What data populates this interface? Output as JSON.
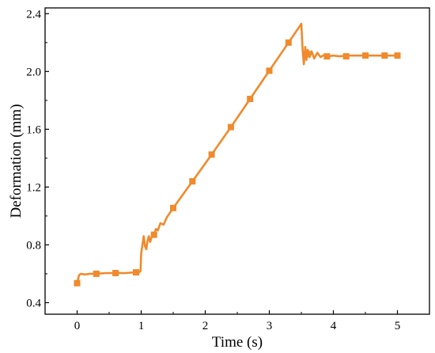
{
  "chart_data": {
    "type": "line",
    "title": "",
    "xlabel": "Time (s)",
    "ylabel": "Deformation (mm)",
    "xlim": [
      -0.5,
      5.5
    ],
    "ylim": [
      0.32,
      2.44
    ],
    "x_ticks": [
      0,
      1,
      2,
      3,
      4,
      5
    ],
    "x_tick_labels": [
      "0",
      "1",
      "2",
      "3",
      "4",
      "5"
    ],
    "y_ticks": [
      0.4,
      0.8,
      1.2,
      1.6,
      2.0,
      2.4
    ],
    "y_tick_labels": [
      "0.4",
      "0.8",
      "1.2",
      "1.6",
      "2.0",
      "2.4"
    ],
    "grid": false,
    "legend": "none",
    "colors": {
      "series": "#F08A2C",
      "axis": "#000000"
    },
    "series": [
      {
        "x": [
          0,
          0.03,
          0.06,
          0.12,
          0.2,
          0.3,
          0.45,
          0.6,
          0.75,
          0.9,
          0.97,
          0.99,
          1.0,
          1.02,
          1.04,
          1.06,
          1.08,
          1.1,
          1.12,
          1.14,
          1.16,
          1.18,
          1.2,
          1.23,
          1.26,
          1.3,
          1.35,
          1.4,
          1.5,
          1.8,
          2.1,
          2.4,
          2.7,
          3.0,
          3.3,
          3.5,
          3.52,
          3.54,
          3.56,
          3.58,
          3.6,
          3.63,
          3.66,
          3.7,
          3.75,
          3.8,
          3.86,
          3.92,
          4.0,
          4.1,
          4.2,
          4.5,
          4.8,
          5.0
        ],
        "y": [
          0.535,
          0.59,
          0.6,
          0.595,
          0.6,
          0.6,
          0.605,
          0.605,
          0.605,
          0.61,
          0.61,
          0.62,
          0.74,
          0.8,
          0.86,
          0.79,
          0.77,
          0.83,
          0.86,
          0.82,
          0.85,
          0.88,
          0.87,
          0.91,
          0.9,
          0.95,
          0.94,
          0.99,
          1.055,
          1.24,
          1.425,
          1.615,
          1.81,
          2.005,
          2.2,
          2.33,
          2.15,
          2.05,
          2.17,
          2.08,
          2.15,
          2.1,
          2.14,
          2.09,
          2.13,
          2.1,
          2.115,
          2.105,
          2.11,
          2.105,
          2.11,
          2.11,
          2.11,
          2.11
        ]
      }
    ],
    "markers": {
      "shape": "square",
      "x": [
        0,
        0.3,
        0.6,
        0.92,
        1.2,
        1.5,
        1.8,
        2.1,
        2.4,
        2.7,
        3.0,
        3.3,
        3.6,
        3.9,
        4.2,
        4.5,
        4.8,
        5.0
      ],
      "y": [
        0.535,
        0.6,
        0.605,
        0.61,
        0.87,
        1.055,
        1.24,
        1.425,
        1.615,
        1.81,
        2.005,
        2.2,
        2.12,
        2.105,
        2.105,
        2.11,
        2.11,
        2.11
      ]
    }
  }
}
